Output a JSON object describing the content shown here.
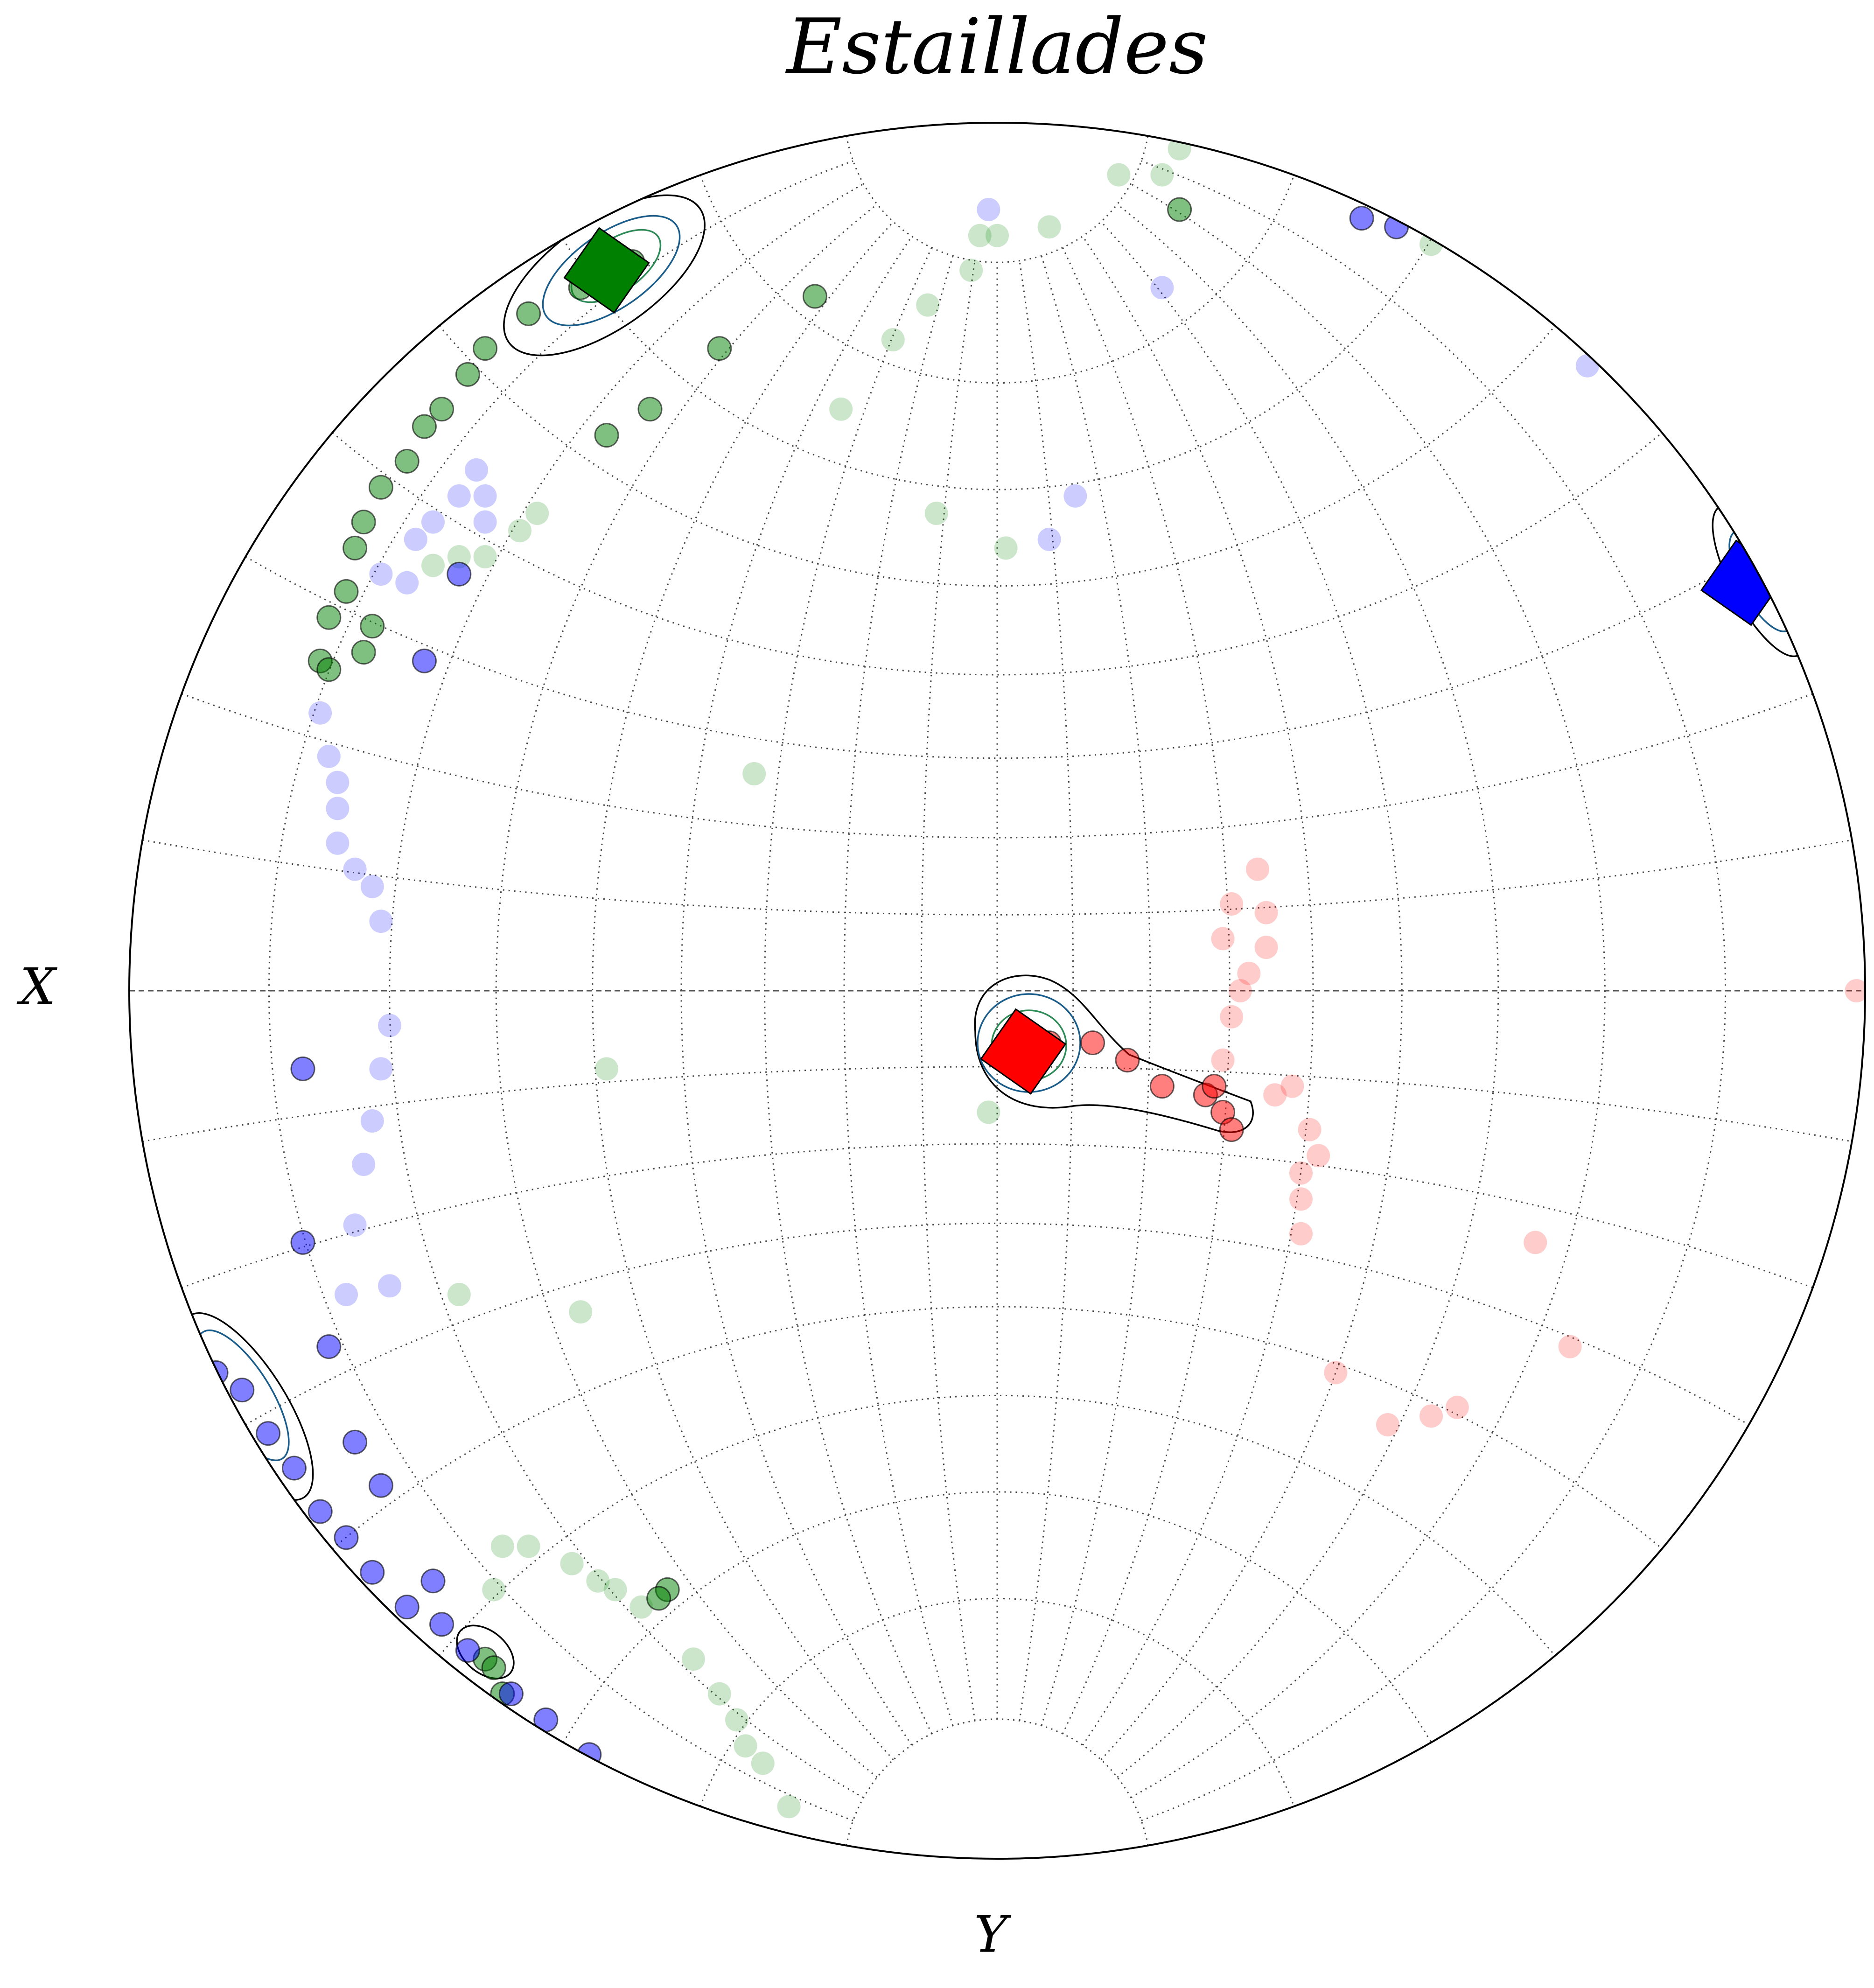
{
  "chart_data": {
    "type": "stereonet",
    "title": "Estaillades",
    "xlabel": "X",
    "ylabel": "Y",
    "xlim": [
      -1,
      1
    ],
    "ylim": [
      -1,
      1
    ],
    "grid": true,
    "series": [
      {
        "color": "#ff0000",
        "alpha": 0.2,
        "marker": "o",
        "x": [
          0.3,
          0.31,
          0.27,
          0.31,
          0.26,
          0.29,
          0.28,
          0.27,
          0.26,
          0.32,
          0.34,
          0.36,
          0.37,
          0.35,
          0.35,
          0.35,
          0.62,
          0.66,
          0.39,
          0.45,
          0.5,
          0.53,
          0.99
        ],
        "y": [
          0.14,
          0.09,
          0.1,
          0.05,
          0.06,
          0.02,
          0.0,
          -0.03,
          -0.08,
          -0.12,
          -0.11,
          -0.16,
          -0.19,
          -0.21,
          -0.24,
          -0.28,
          -0.29,
          -0.41,
          -0.44,
          -0.5,
          -0.49,
          -0.48,
          0.0
        ]
      },
      {
        "color": "#ff0000",
        "alpha": 0.5,
        "marker": "o",
        "x": [
          0.06,
          0.11,
          0.15,
          0.19,
          0.24,
          0.26,
          0.27,
          0.25
        ],
        "y": [
          -0.06,
          -0.06,
          -0.08,
          -0.11,
          -0.12,
          -0.14,
          -0.16,
          -0.11
        ]
      },
      {
        "color": "#008000",
        "alpha": 0.2,
        "marker": "o",
        "x": [
          0.14,
          0.19,
          0.21,
          -0.02,
          0.0,
          0.06,
          -0.03,
          -0.08,
          -0.12,
          -0.18,
          -0.07,
          0.01,
          -0.28,
          -0.45,
          -0.01,
          -0.62,
          -0.48,
          -0.53,
          -0.55,
          -0.59,
          -0.62,
          -0.65,
          -0.57,
          -0.54,
          -0.58,
          -0.49,
          -0.46,
          -0.44,
          -0.41,
          -0.35,
          -0.32,
          -0.3,
          -0.29,
          -0.27,
          -0.24,
          0.5
        ],
        "y": [
          0.94,
          0.94,
          0.97,
          0.87,
          0.87,
          0.88,
          0.83,
          0.79,
          0.75,
          0.67,
          0.55,
          0.51,
          0.25,
          -0.09,
          -0.14,
          -0.35,
          -0.37,
          0.55,
          0.53,
          0.5,
          0.5,
          0.49,
          -0.64,
          -0.64,
          -0.69,
          -0.66,
          -0.68,
          -0.69,
          -0.71,
          -0.77,
          -0.81,
          -0.84,
          -0.87,
          -0.89,
          -0.94,
          0.86
        ]
      },
      {
        "color": "#008000",
        "alpha": 0.5,
        "marker": "o",
        "x": [
          -0.42,
          -0.48,
          -0.54,
          -0.59,
          -0.61,
          -0.64,
          -0.66,
          -0.68,
          -0.71,
          -0.73,
          -0.74,
          -0.75,
          -0.77,
          -0.78,
          -0.77,
          -0.73,
          -0.72,
          -0.45,
          -0.4,
          -0.32,
          -0.21,
          0.21,
          -0.38,
          -0.39,
          -0.59,
          -0.58,
          -0.57
        ],
        "y": [
          0.84,
          0.81,
          0.78,
          0.74,
          0.71,
          0.67,
          0.65,
          0.61,
          0.58,
          0.54,
          0.51,
          0.46,
          0.43,
          0.38,
          0.37,
          0.39,
          0.42,
          0.64,
          0.67,
          0.74,
          0.8,
          0.9,
          -0.69,
          -0.7,
          -0.77,
          -0.78,
          -0.81
        ]
      },
      {
        "color": "#0000ff",
        "alpha": 0.2,
        "marker": "o",
        "x": [
          -0.01,
          0.19,
          0.68,
          0.09,
          0.06,
          -0.6,
          -0.59,
          -0.62,
          -0.65,
          -0.59,
          -0.67,
          -0.71,
          -0.68,
          -0.78,
          -0.77,
          -0.76,
          -0.76,
          -0.76,
          -0.74,
          -0.72,
          -0.71,
          -0.7,
          -0.71,
          -0.72,
          -0.73,
          -0.74,
          -0.7,
          -0.75
        ],
        "y": [
          0.9,
          0.81,
          0.72,
          0.57,
          0.52,
          0.6,
          0.57,
          0.57,
          0.54,
          0.54,
          0.52,
          0.48,
          0.47,
          0.32,
          0.27,
          0.24,
          0.21,
          0.17,
          0.14,
          0.12,
          0.08,
          -0.04,
          -0.09,
          -0.15,
          -0.2,
          -0.27,
          -0.34,
          -0.35
        ]
      },
      {
        "color": "#0000ff",
        "alpha": 0.5,
        "marker": "o",
        "x": [
          0.42,
          0.46,
          -0.9,
          -0.87,
          -0.84,
          -0.81,
          -0.78,
          -0.75,
          -0.72,
          -0.68,
          -0.65,
          -0.64,
          -0.61,
          -0.56,
          -0.52,
          -0.47,
          -0.8,
          -0.8,
          -0.77,
          -0.74,
          -0.71,
          -0.62,
          -0.66
        ],
        "y": [
          0.89,
          0.88,
          -0.44,
          -0.46,
          -0.51,
          -0.55,
          -0.6,
          -0.63,
          -0.67,
          -0.71,
          -0.68,
          -0.73,
          -0.76,
          -0.81,
          -0.84,
          -0.88,
          -0.09,
          -0.29,
          -0.41,
          -0.52,
          -0.57,
          0.48,
          0.38
        ]
      },
      {
        "color": "#ff0000",
        "alpha": 1,
        "marker": "D",
        "x": [
          0.03
        ],
        "y": [
          -0.07
        ]
      },
      {
        "color": "#008000",
        "alpha": 1,
        "marker": "D",
        "x": [
          -0.45
        ],
        "y": [
          0.83
        ]
      },
      {
        "color": "#0000ff",
        "alpha": 1,
        "marker": "D",
        "x": [
          0.86
        ],
        "y": [
          0.47
        ]
      }
    ]
  }
}
